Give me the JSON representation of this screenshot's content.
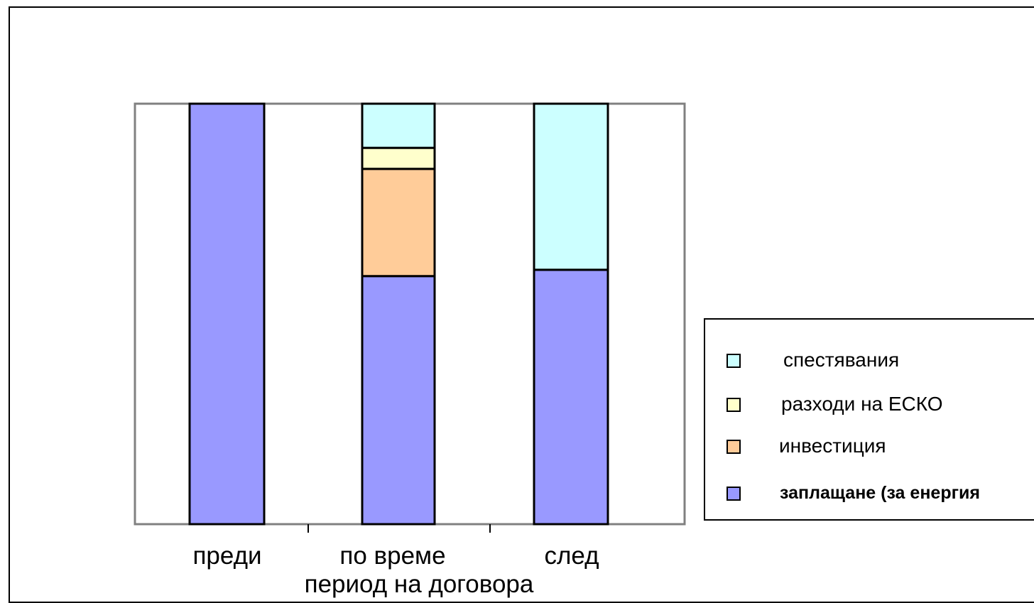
{
  "chart_data": {
    "type": "bar",
    "stacked": true,
    "title": "",
    "xlabel": "период на договора",
    "ylabel": "",
    "categories": [
      "преди",
      "по време",
      "след"
    ],
    "ylim": [
      0,
      100
    ],
    "grid": false,
    "legend_position": "right",
    "series": [
      {
        "name": "заплащане (за енергия",
        "values": [
          100,
          59,
          60.5
        ],
        "color": "#9999FF"
      },
      {
        "name": "инвестиция",
        "values": [
          0,
          25.5,
          0
        ],
        "color": "#FFCC99"
      },
      {
        "name": "разходи на ЕСКО",
        "values": [
          0,
          5,
          0
        ],
        "color": "#FFFFCC"
      },
      {
        "name": "спестявания",
        "values": [
          0,
          10.5,
          39.5
        ],
        "color": "#CCFFFF"
      }
    ],
    "legend_order": [
      "спестявания",
      "разходи на ЕСКО",
      "инвестиция",
      "заплащане (за енергия"
    ]
  }
}
